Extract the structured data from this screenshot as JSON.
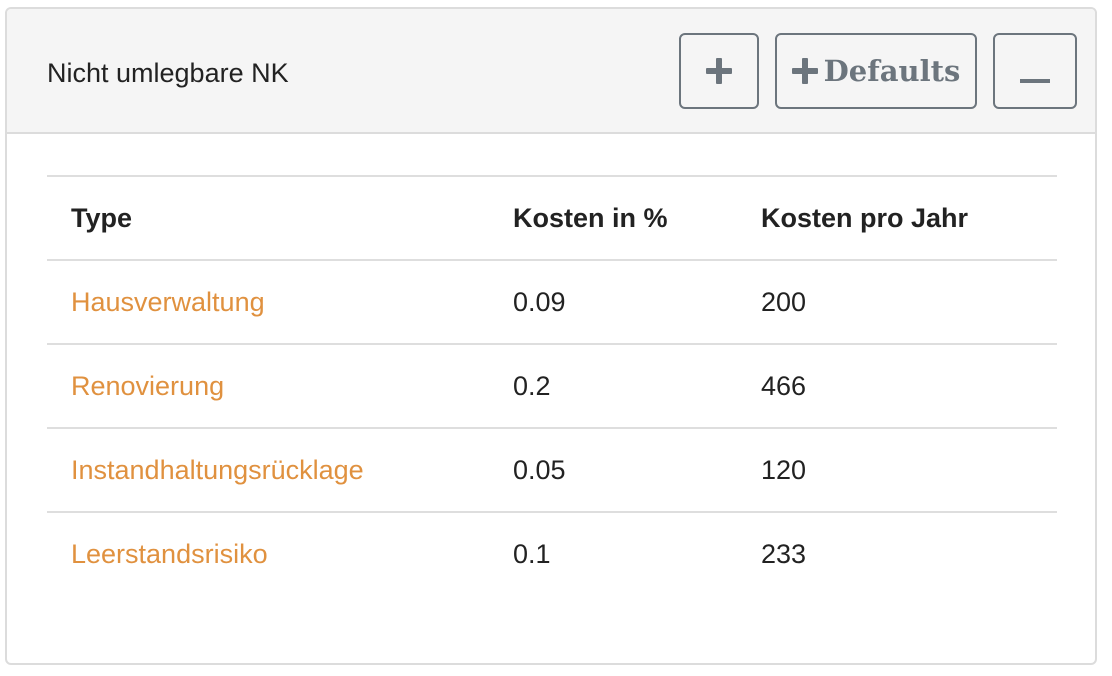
{
  "card": {
    "title": "Nicht umlegbare NK",
    "buttons": {
      "add_icon": "plus-icon",
      "defaults_label": "Defaults",
      "defaults_icon": "plus-icon",
      "collapse_icon": "minus-icon"
    }
  },
  "table": {
    "headers": [
      "Type",
      "Kosten in %",
      "Kosten pro Jahr"
    ],
    "rows": [
      {
        "type": "Hausverwaltung",
        "percent": "0.09",
        "per_year": "200"
      },
      {
        "type": "Renovierung",
        "percent": "0.2",
        "per_year": "466"
      },
      {
        "type": "Instandhaltungsrücklage",
        "percent": "0.05",
        "per_year": "120"
      },
      {
        "type": "Leerstandsrisiko",
        "percent": "0.1",
        "per_year": "233"
      }
    ]
  },
  "colors": {
    "link": "#e0913f",
    "button": "#6c757d",
    "header_bg": "#f5f5f5",
    "border": "#dcdcdc"
  }
}
